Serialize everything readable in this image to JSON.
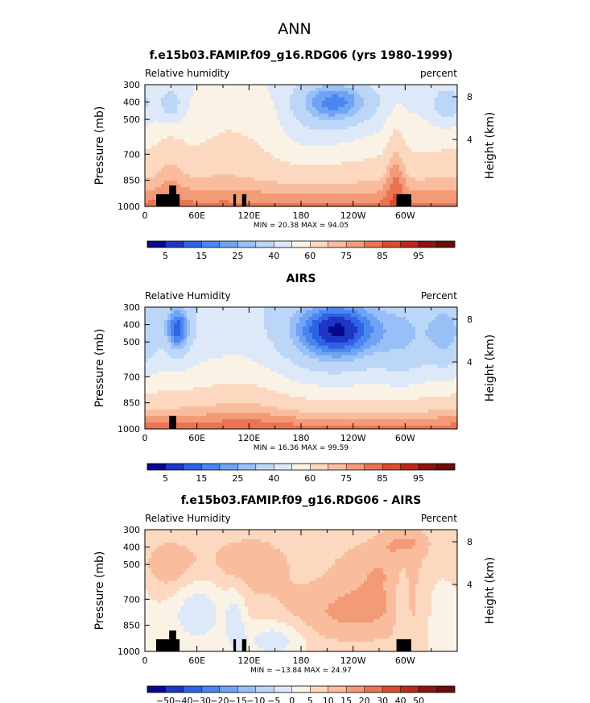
{
  "figure": {
    "season": "ANN"
  },
  "chart_data": [
    {
      "type": "heatmap",
      "title": "f.e15b03.FAMIP.f09_g16.RDG06 (yrs 1980-1999)",
      "left_label": "Relative humidity",
      "right_label": "percent",
      "ylabel": "Pressure (mb)",
      "ylabel_right": "Height (km)",
      "x_ticks": [
        "0",
        "60E",
        "120E",
        "180",
        "120W",
        "60W"
      ],
      "y_ticks": [
        "300",
        "400",
        "500",
        "700",
        "850",
        "1000"
      ],
      "y_ticks_right": [
        "8",
        "4"
      ],
      "stats": "MIN =   20.38   MAX =   94.05",
      "min": 20.38,
      "max": 94.05,
      "colorbar_labels": [
        "5",
        "15",
        "25",
        "40",
        "60",
        "75",
        "85",
        "95"
      ],
      "colorbar_levels": [
        0,
        5,
        10,
        15,
        20,
        25,
        30,
        40,
        50,
        60,
        70,
        75,
        80,
        85,
        90,
        95,
        100
      ],
      "colorbar_colors": [
        "#08088c",
        "#1e35c6",
        "#2f63e6",
        "#4b86f0",
        "#6fa3f4",
        "#98c0f7",
        "#bcd6f8",
        "#dde9f8",
        "#fbf2e6",
        "#fbd8bf",
        "#f9bc9d",
        "#f39a77",
        "#ea7452",
        "#dc4b2e",
        "#bb2a18",
        "#8c1412",
        "#6a0d0d"
      ],
      "land_blocks": [
        {
          "lon_start": 13,
          "lon_end": 40,
          "p_top": 930
        },
        {
          "lon_start": 28,
          "lon_end": 36,
          "p_top": 880
        },
        {
          "lon_start": 102,
          "lon_end": 105,
          "p_top": 930
        },
        {
          "lon_start": 112,
          "lon_end": 117,
          "p_top": 930
        },
        {
          "lon_start": 290,
          "lon_end": 307,
          "p_top": 930
        }
      ]
    },
    {
      "type": "heatmap",
      "title": "AIRS",
      "left_label": "Relative Humidity",
      "right_label": "Percent",
      "ylabel": "Pressure (mb)",
      "ylabel_right": "Height (km)",
      "x_ticks": [
        "0",
        "60E",
        "120E",
        "180",
        "120W",
        "60W"
      ],
      "y_ticks": [
        "300",
        "400",
        "500",
        "700",
        "850",
        "1000"
      ],
      "y_ticks_right": [
        "8",
        "4"
      ],
      "stats": "MIN =   16.36   MAX =   99.59",
      "min": 16.36,
      "max": 99.59,
      "colorbar_labels": [
        "5",
        "15",
        "25",
        "40",
        "60",
        "75",
        "85",
        "95"
      ],
      "colorbar_levels": [
        0,
        5,
        10,
        15,
        20,
        25,
        30,
        40,
        50,
        60,
        70,
        75,
        80,
        85,
        90,
        95,
        100
      ],
      "colorbar_colors": [
        "#08088c",
        "#1e35c6",
        "#2f63e6",
        "#4b86f0",
        "#6fa3f4",
        "#98c0f7",
        "#bcd6f8",
        "#dde9f8",
        "#fbf2e6",
        "#fbd8bf",
        "#f9bc9d",
        "#f39a77",
        "#ea7452",
        "#dc4b2e",
        "#bb2a18",
        "#8c1412",
        "#6a0d0d"
      ],
      "land_blocks": [
        {
          "lon_start": 28,
          "lon_end": 36,
          "p_top": 925
        }
      ]
    },
    {
      "type": "heatmap",
      "title": "f.e15b03.FAMIP.f09_g16.RDG06 - AIRS",
      "left_label": "Relative Humidity",
      "right_label": "Percent",
      "ylabel": "Pressure (mb)",
      "ylabel_right": "Height (km)",
      "x_ticks": [
        "0",
        "60E",
        "120E",
        "180",
        "120W",
        "60W"
      ],
      "y_ticks": [
        "300",
        "400",
        "500",
        "700",
        "850",
        "1000"
      ],
      "y_ticks_right": [
        "8",
        "4"
      ],
      "stats": "MIN =  −13.84   MAX =   24.97",
      "min": -13.84,
      "max": 24.97,
      "colorbar_labels": [
        "−50",
        "−40",
        "−30",
        "−20",
        "−15",
        "−10",
        "−5",
        "0",
        "5",
        "10",
        "15",
        "20",
        "30",
        "40",
        "50"
      ],
      "colorbar_levels": [
        -60,
        -50,
        -40,
        -30,
        -20,
        -15,
        -10,
        -5,
        0,
        5,
        10,
        15,
        20,
        30,
        40,
        50,
        60
      ],
      "colorbar_colors": [
        "#08088c",
        "#1e35c6",
        "#2f63e6",
        "#4b86f0",
        "#6fa3f4",
        "#98c0f7",
        "#bcd6f8",
        "#dde9f8",
        "#fbf2e6",
        "#fbd8bf",
        "#f9bc9d",
        "#f39a77",
        "#ea7452",
        "#dc4b2e",
        "#bb2a18",
        "#8c1412",
        "#6a0d0d"
      ],
      "land_blocks": [
        {
          "lon_start": 13,
          "lon_end": 40,
          "p_top": 930
        },
        {
          "lon_start": 28,
          "lon_end": 36,
          "p_top": 880
        },
        {
          "lon_start": 102,
          "lon_end": 105,
          "p_top": 930
        },
        {
          "lon_start": 112,
          "lon_end": 117,
          "p_top": 930
        },
        {
          "lon_start": 290,
          "lon_end": 307,
          "p_top": 930
        }
      ]
    }
  ]
}
